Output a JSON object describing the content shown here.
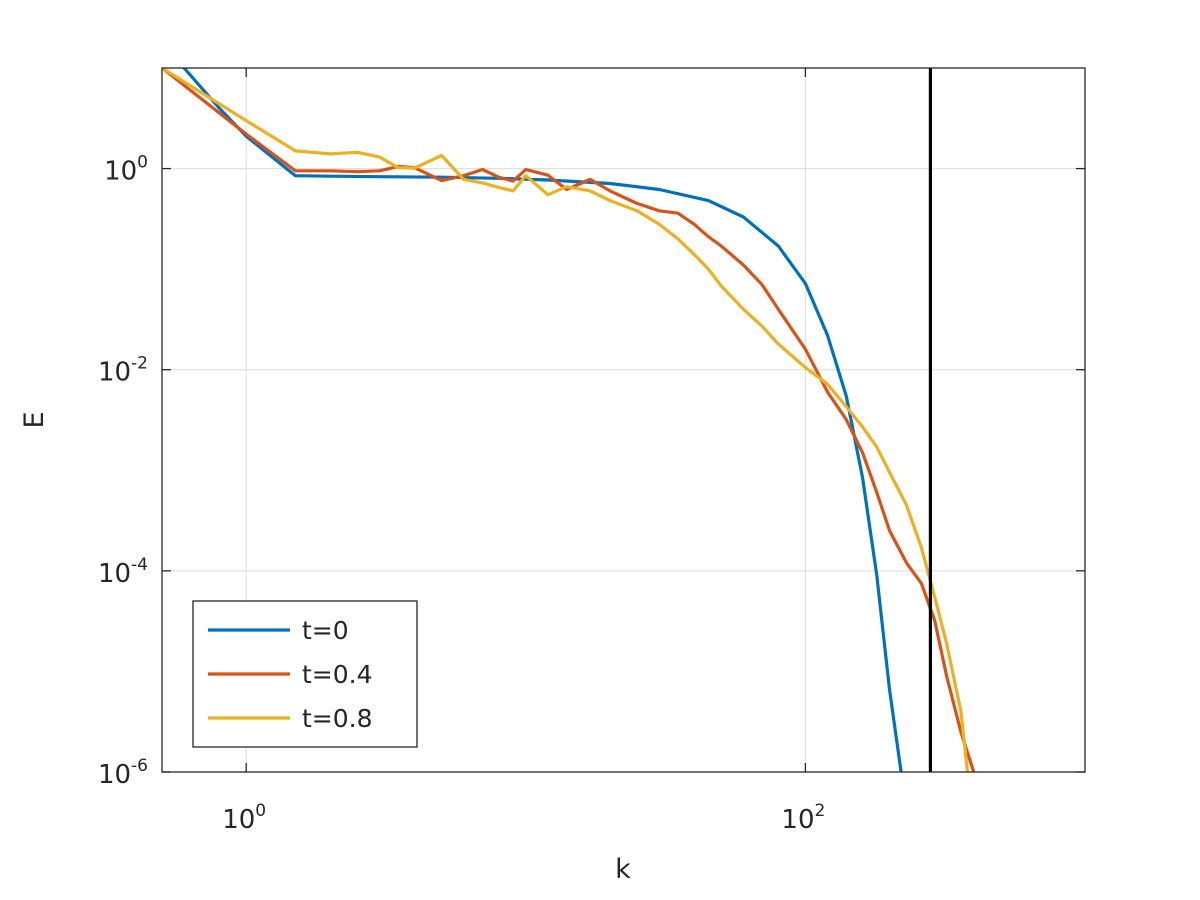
{
  "chart_data": {
    "type": "line",
    "xlabel": "k",
    "ylabel": "E",
    "xscale": "log",
    "yscale": "log",
    "xlim": [
      0.5,
      1000
    ],
    "ylim": [
      1e-06,
      10
    ],
    "grid": true,
    "legend_position": "bottom-left",
    "xticks": [
      {
        "base": "10",
        "exp": "0",
        "value": 1
      },
      {
        "base": "10",
        "exp": "2",
        "value": 100
      }
    ],
    "yticks": [
      {
        "base": "10",
        "exp": "0",
        "value": 1
      },
      {
        "base": "10",
        "exp": "-2",
        "value": 0.01
      },
      {
        "base": "10",
        "exp": "-4",
        "value": 0.0001
      },
      {
        "base": "10",
        "exp": "-6",
        "value": 1e-06
      }
    ],
    "vertical_line": {
      "x": 280,
      "color": "#000000"
    },
    "series": [
      {
        "name": "t=0",
        "color": "#0072BD",
        "x": [
          0.5,
          0.6,
          0.8,
          1,
          1.5,
          2,
          3,
          5,
          8,
          12,
          20,
          30,
          45,
          60,
          80,
          100,
          120,
          140,
          160,
          180,
          200,
          220
        ],
        "y": [
          14,
          10,
          4,
          2.1,
          0.85,
          0.84,
          0.83,
          0.82,
          0.8,
          0.77,
          0.71,
          0.62,
          0.48,
          0.33,
          0.17,
          0.072,
          0.022,
          0.0055,
          0.00085,
          9e-05,
          6.5e-06,
          1e-06
        ]
      },
      {
        "name": "t=0.4",
        "color": "#D95319",
        "x": [
          0.5,
          1,
          1.5,
          2,
          2.5,
          3,
          3.5,
          4,
          5,
          6,
          7,
          8,
          9,
          10,
          12,
          14,
          17,
          20,
          25,
          30,
          35,
          40,
          45,
          50,
          60,
          70,
          80,
          100,
          120,
          140,
          160,
          180,
          200,
          230,
          260,
          290,
          320,
          360,
          400
        ],
        "y": [
          10,
          2.2,
          0.95,
          0.95,
          0.93,
          0.95,
          1.05,
          1.02,
          0.76,
          0.85,
          0.98,
          0.82,
          0.75,
          0.98,
          0.86,
          0.62,
          0.78,
          0.6,
          0.45,
          0.38,
          0.36,
          0.28,
          0.21,
          0.17,
          0.11,
          0.07,
          0.04,
          0.016,
          0.006,
          0.0032,
          0.0015,
          0.0006,
          0.00025,
          0.00012,
          7.5e-05,
          3.2e-05,
          9e-06,
          2.5e-06,
          1e-06
        ]
      },
      {
        "name": "t=0.8",
        "color": "#EDB120",
        "x": [
          0.5,
          1,
          1.5,
          2,
          2.5,
          3,
          3.5,
          4,
          5,
          6,
          7,
          8,
          9,
          10,
          12,
          14,
          17,
          20,
          25,
          30,
          35,
          40,
          45,
          50,
          60,
          70,
          80,
          100,
          120,
          140,
          160,
          180,
          200,
          230,
          260,
          290,
          320,
          360,
          380
        ],
        "y": [
          10,
          3,
          1.5,
          1.4,
          1.45,
          1.3,
          1.02,
          1.01,
          1.35,
          0.78,
          0.72,
          0.65,
          0.6,
          0.85,
          0.55,
          0.66,
          0.6,
          0.48,
          0.38,
          0.28,
          0.2,
          0.14,
          0.1,
          0.068,
          0.04,
          0.027,
          0.018,
          0.0105,
          0.0072,
          0.0043,
          0.0027,
          0.0017,
          0.00095,
          0.00045,
          0.00017,
          5.5e-05,
          1.9e-05,
          4e-06,
          1e-06
        ]
      }
    ]
  }
}
